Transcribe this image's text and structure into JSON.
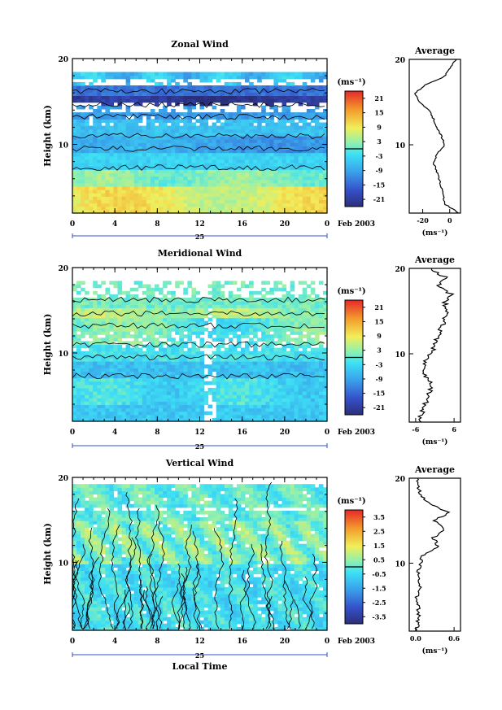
{
  "chart_data": [
    {
      "type": "heatmap",
      "title": "Zonal Wind",
      "xlabel": "",
      "ylabel": "Height (km)",
      "x_ticks": [
        "0",
        "4",
        "8",
        "12",
        "16",
        "20",
        "0"
      ],
      "y_ticks": [
        "20",
        "10"
      ],
      "xlim": [
        0,
        24
      ],
      "ylim": [
        2,
        20
      ],
      "date_label": "25",
      "month_label": "Feb 2003",
      "colorbar": {
        "unit": "(ms⁻¹)",
        "ticks": [
          "21",
          "15",
          "9",
          "3",
          "-3",
          "-9",
          "-15",
          "-21"
        ],
        "range": [
          -24,
          24
        ]
      },
      "profile": {
        "title": "Average",
        "xlabel": "(ms⁻¹)",
        "x_ticks": [
          "-20",
          "0"
        ],
        "y_ticks": [
          "20",
          "10"
        ],
        "xlim": [
          -30,
          8
        ],
        "heights": [
          2,
          3,
          4,
          5,
          6,
          7,
          8,
          9,
          10,
          11,
          12,
          13,
          14,
          15,
          16,
          17,
          18,
          19,
          20
        ],
        "values": [
          7,
          -3,
          -5,
          -6,
          -8,
          -10,
          -12,
          -9,
          -4,
          -6,
          -10,
          -12,
          -15,
          -22,
          -26,
          -18,
          -4,
          0,
          5
        ]
      }
    },
    {
      "type": "heatmap",
      "title": "Meridional Wind",
      "xlabel": "",
      "ylabel": "Height (km)",
      "x_ticks": [
        "0",
        "4",
        "8",
        "12",
        "16",
        "20",
        "0"
      ],
      "y_ticks": [
        "20",
        "10"
      ],
      "xlim": [
        0,
        24
      ],
      "ylim": [
        2,
        20
      ],
      "date_label": "25",
      "month_label": "Feb 2003",
      "colorbar": {
        "unit": "(ms⁻¹)",
        "ticks": [
          "21",
          "15",
          "9",
          "3",
          "-3",
          "-9",
          "-15",
          "-21"
        ],
        "range": [
          -24,
          24
        ]
      },
      "profile": {
        "title": "Average",
        "xlabel": "(ms⁻¹)",
        "x_ticks": [
          "-6",
          "6"
        ],
        "y_ticks": [
          "20",
          "10"
        ],
        "xlim": [
          -8,
          8
        ],
        "heights": [
          2,
          3,
          4,
          5,
          6,
          7,
          8,
          9,
          10,
          11,
          12,
          13,
          14,
          15,
          16,
          17,
          18,
          19,
          20
        ],
        "values": [
          -5,
          -4,
          -3,
          -2,
          -1,
          -2,
          -4,
          -3,
          -1,
          0,
          1,
          2,
          3,
          4,
          3,
          5,
          1,
          3,
          -1
        ]
      }
    },
    {
      "type": "heatmap",
      "title": "Vertical Wind",
      "xlabel": "Local Time",
      "ylabel": "Height (km)",
      "x_ticks": [
        "0",
        "4",
        "8",
        "12",
        "16",
        "20",
        "0"
      ],
      "y_ticks": [
        "20",
        "10"
      ],
      "xlim": [
        0,
        24
      ],
      "ylim": [
        2,
        20
      ],
      "date_label": "25",
      "month_label": "Feb 2003",
      "colorbar": {
        "unit": "(ms⁻¹)",
        "ticks": [
          "3.5",
          "2.5",
          "1.5",
          "0.5",
          "-0.5",
          "-1.5",
          "-2.5",
          "-3.5"
        ],
        "range": [
          -4,
          4
        ]
      },
      "profile": {
        "title": "Average",
        "xlabel": "(ms⁻¹)",
        "x_ticks": [
          "0.0",
          "0.6"
        ],
        "y_ticks": [
          "20",
          "10"
        ],
        "xlim": [
          -0.1,
          0.7
        ],
        "heights": [
          2,
          3,
          4,
          5,
          6,
          7,
          8,
          9,
          10,
          11,
          12,
          13,
          14,
          15,
          16,
          17,
          18,
          19,
          20
        ],
        "values": [
          0.02,
          0.03,
          0.05,
          0.04,
          0.02,
          0.06,
          0.05,
          0.04,
          0.07,
          0.12,
          0.35,
          0.28,
          0.45,
          0.3,
          0.52,
          0.2,
          0.08,
          0.05,
          0.03
        ]
      }
    }
  ]
}
